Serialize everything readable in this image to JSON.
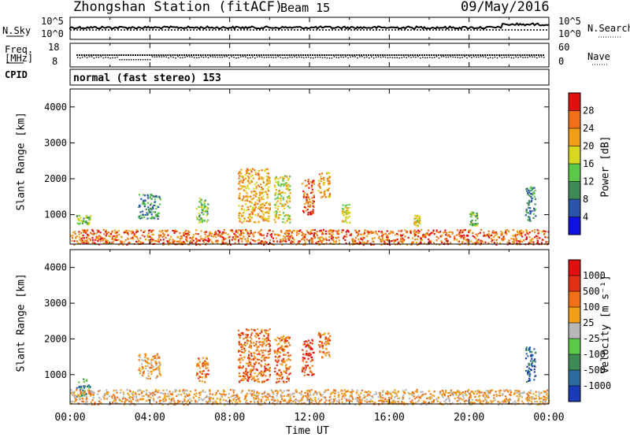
{
  "header": {
    "title": "Zhongshan Station (fitACF)",
    "beam": "Beam 15",
    "date": "09/May/2016"
  },
  "noise_panel": {
    "left_label": "N.Sky",
    "right_label": "N.Search",
    "ticks_left": [
      "10^5",
      "10^0"
    ],
    "ticks_right": [
      "10^5",
      "10^0"
    ]
  },
  "freq_panel": {
    "left_label_1": "Freq.",
    "left_label_2": "[MHz]",
    "right_label": "Nave",
    "ticks_left": [
      "18",
      "8"
    ],
    "ticks_right": [
      "60",
      "0"
    ]
  },
  "cpid_panel": {
    "label": "CPID",
    "value": "normal (fast stereo) 153"
  },
  "chart_data": [
    {
      "type": "heatmap",
      "title": "",
      "ylabel": "Slant Range [km]",
      "xlabel": "",
      "ylim": [
        180,
        4500
      ],
      "xlim_hours": [
        0,
        24
      ],
      "yticks": [
        "1000",
        "2000",
        "3000",
        "4000"
      ],
      "colorbar": {
        "label": "Power [dB]",
        "ticks": [
          "4",
          "8",
          "12",
          "16",
          "20",
          "24",
          "28"
        ],
        "colors": [
          "#1010e0",
          "#2a55a8",
          "#3d8a55",
          "#5cc84a",
          "#d8d820",
          "#f0a018",
          "#f07018",
          "#e01010"
        ]
      },
      "scatter_regions": [
        {
          "t": [
            0.3,
            1.0
          ],
          "r": [
            700,
            1000
          ],
          "level": 3
        },
        {
          "t": [
            3.4,
            4.5
          ],
          "r": [
            900,
            1600
          ],
          "level": 2
        },
        {
          "t": [
            6.3,
            6.9
          ],
          "r": [
            800,
            1500
          ],
          "level": 3
        },
        {
          "t": [
            8.4,
            10.0
          ],
          "r": [
            800,
            2300
          ],
          "level": 5
        },
        {
          "t": [
            10.2,
            11.0
          ],
          "r": [
            800,
            2100
          ],
          "level": 4
        },
        {
          "t": [
            11.6,
            12.2
          ],
          "r": [
            1000,
            2000
          ],
          "level": 6
        },
        {
          "t": [
            12.4,
            13.0
          ],
          "r": [
            1500,
            2200
          ],
          "level": 5
        },
        {
          "t": [
            13.6,
            14.0
          ],
          "r": [
            800,
            1300
          ],
          "level": 4
        },
        {
          "t": [
            17.2,
            17.5
          ],
          "r": [
            700,
            1000
          ],
          "level": 4
        },
        {
          "t": [
            20.0,
            20.4
          ],
          "r": [
            700,
            1100
          ],
          "level": 3
        },
        {
          "t": [
            22.8,
            23.3
          ],
          "r": [
            800,
            1800
          ],
          "level": 2
        },
        {
          "t": [
            0.0,
            24.0
          ],
          "r": [
            180,
            600
          ],
          "level": 6
        }
      ]
    },
    {
      "type": "heatmap",
      "title": "",
      "ylabel": "Slant Range [km]",
      "xlabel": "Time UT",
      "ylim": [
        180,
        4500
      ],
      "xlim_hours": [
        0,
        24
      ],
      "yticks": [
        "1000",
        "2000",
        "3000",
        "4000"
      ],
      "xticks": [
        "00:00",
        "04:00",
        "08:00",
        "12:00",
        "16:00",
        "20:00",
        "00:00"
      ],
      "colorbar": {
        "label": "Velocity [m s⁻¹]",
        "ticks": [
          "1000",
          "500",
          "100",
          "25",
          "-25",
          "-100",
          "-500",
          "-1000"
        ],
        "colors": [
          "#1a3ab8",
          "#2d6aa0",
          "#3d8a55",
          "#5cc84a",
          "#b8b8b8",
          "#f0a018",
          "#f07018",
          "#e03018",
          "#e01010"
        ]
      },
      "scatter_regions": [
        {
          "t": [
            0.3,
            1.0
          ],
          "r": [
            400,
            900
          ],
          "level": 2
        },
        {
          "t": [
            3.4,
            4.5
          ],
          "r": [
            900,
            1600
          ],
          "level": 5
        },
        {
          "t": [
            6.3,
            6.9
          ],
          "r": [
            800,
            1500
          ],
          "level": 6
        },
        {
          "t": [
            8.4,
            10.0
          ],
          "r": [
            800,
            2300
          ],
          "level": 6
        },
        {
          "t": [
            10.2,
            11.0
          ],
          "r": [
            800,
            2100
          ],
          "level": 6
        },
        {
          "t": [
            11.6,
            12.2
          ],
          "r": [
            1000,
            2000
          ],
          "level": 7
        },
        {
          "t": [
            12.4,
            13.0
          ],
          "r": [
            1500,
            2200
          ],
          "level": 6
        },
        {
          "t": [
            22.8,
            23.3
          ],
          "r": [
            800,
            1800
          ],
          "level": 1
        },
        {
          "t": [
            0.0,
            24.0
          ],
          "r": [
            180,
            600
          ],
          "level": 5
        }
      ]
    }
  ]
}
